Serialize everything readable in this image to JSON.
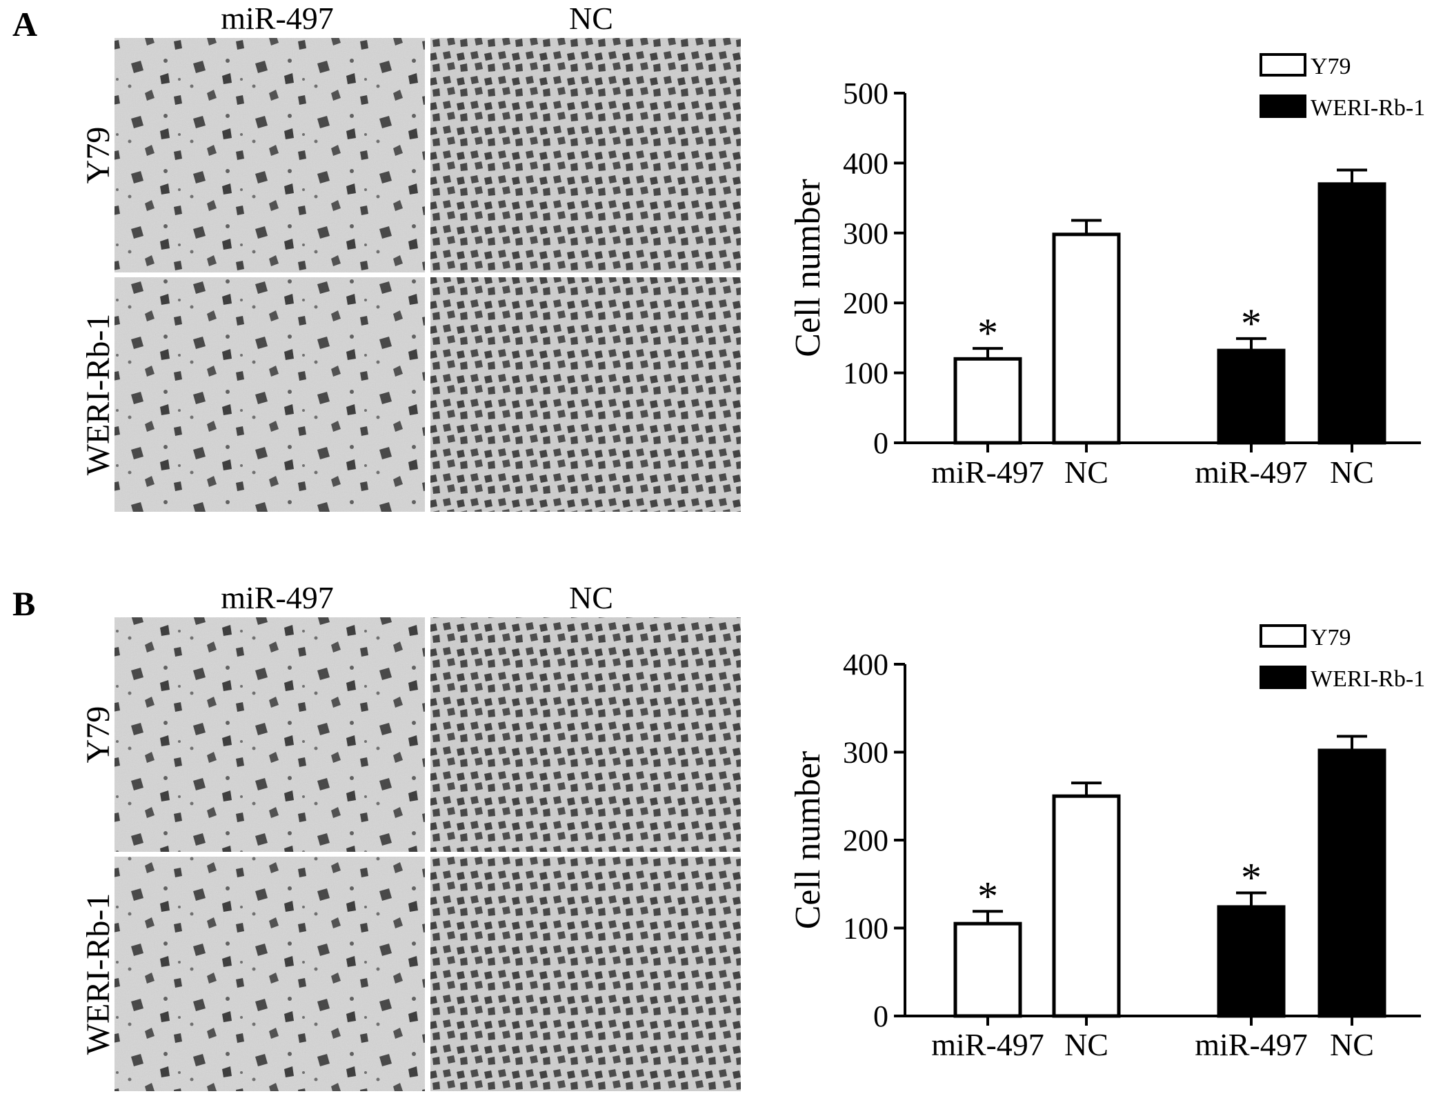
{
  "panels": [
    {
      "letter": "A",
      "micrographs": {
        "column_labels": [
          "miR-497",
          "NC"
        ],
        "row_labels": [
          "Y79",
          "WERI-Rb-1"
        ]
      }
    },
    {
      "letter": "B",
      "micrographs": {
        "column_labels": [
          "miR-497",
          "NC"
        ],
        "row_labels": [
          "Y79",
          "WERI-Rb-1"
        ]
      }
    }
  ],
  "colors": {
    "Y79": "#ffffff",
    "WERI-Rb-1": "#000000",
    "axis": "#000000"
  },
  "chart_data": [
    {
      "type": "bar",
      "panel": "A",
      "ylabel": "Cell number",
      "ylim": [
        0,
        500
      ],
      "yticks": [
        0,
        100,
        200,
        300,
        400,
        500
      ],
      "categories": [
        "miR-497",
        "NC",
        "miR-497",
        "NC"
      ],
      "series": [
        {
          "name": "Y79",
          "color": "#ffffff",
          "bars": [
            {
              "category": "miR-497",
              "value": 120,
              "error": 15,
              "significant": true
            },
            {
              "category": "NC",
              "value": 298,
              "error": 20,
              "significant": false
            }
          ]
        },
        {
          "name": "WERI-Rb-1",
          "color": "#000000",
          "bars": [
            {
              "category": "miR-497",
              "value": 132,
              "error": 17,
              "significant": true
            },
            {
              "category": "NC",
              "value": 370,
              "error": 20,
              "significant": false
            }
          ]
        }
      ],
      "significance_marker": "*",
      "legend": "top-right"
    },
    {
      "type": "bar",
      "panel": "B",
      "ylabel": "Cell number",
      "ylim": [
        0,
        400
      ],
      "yticks": [
        0,
        100,
        200,
        300,
        400
      ],
      "categories": [
        "miR-497",
        "NC",
        "miR-497",
        "NC"
      ],
      "series": [
        {
          "name": "Y79",
          "color": "#ffffff",
          "bars": [
            {
              "category": "miR-497",
              "value": 105,
              "error": 14,
              "significant": true
            },
            {
              "category": "NC",
              "value": 250,
              "error": 15,
              "significant": false
            }
          ]
        },
        {
          "name": "WERI-Rb-1",
          "color": "#000000",
          "bars": [
            {
              "category": "miR-497",
              "value": 124,
              "error": 16,
              "significant": true
            },
            {
              "category": "NC",
              "value": 302,
              "error": 16,
              "significant": false
            }
          ]
        }
      ],
      "significance_marker": "*",
      "legend": "top-right"
    }
  ]
}
